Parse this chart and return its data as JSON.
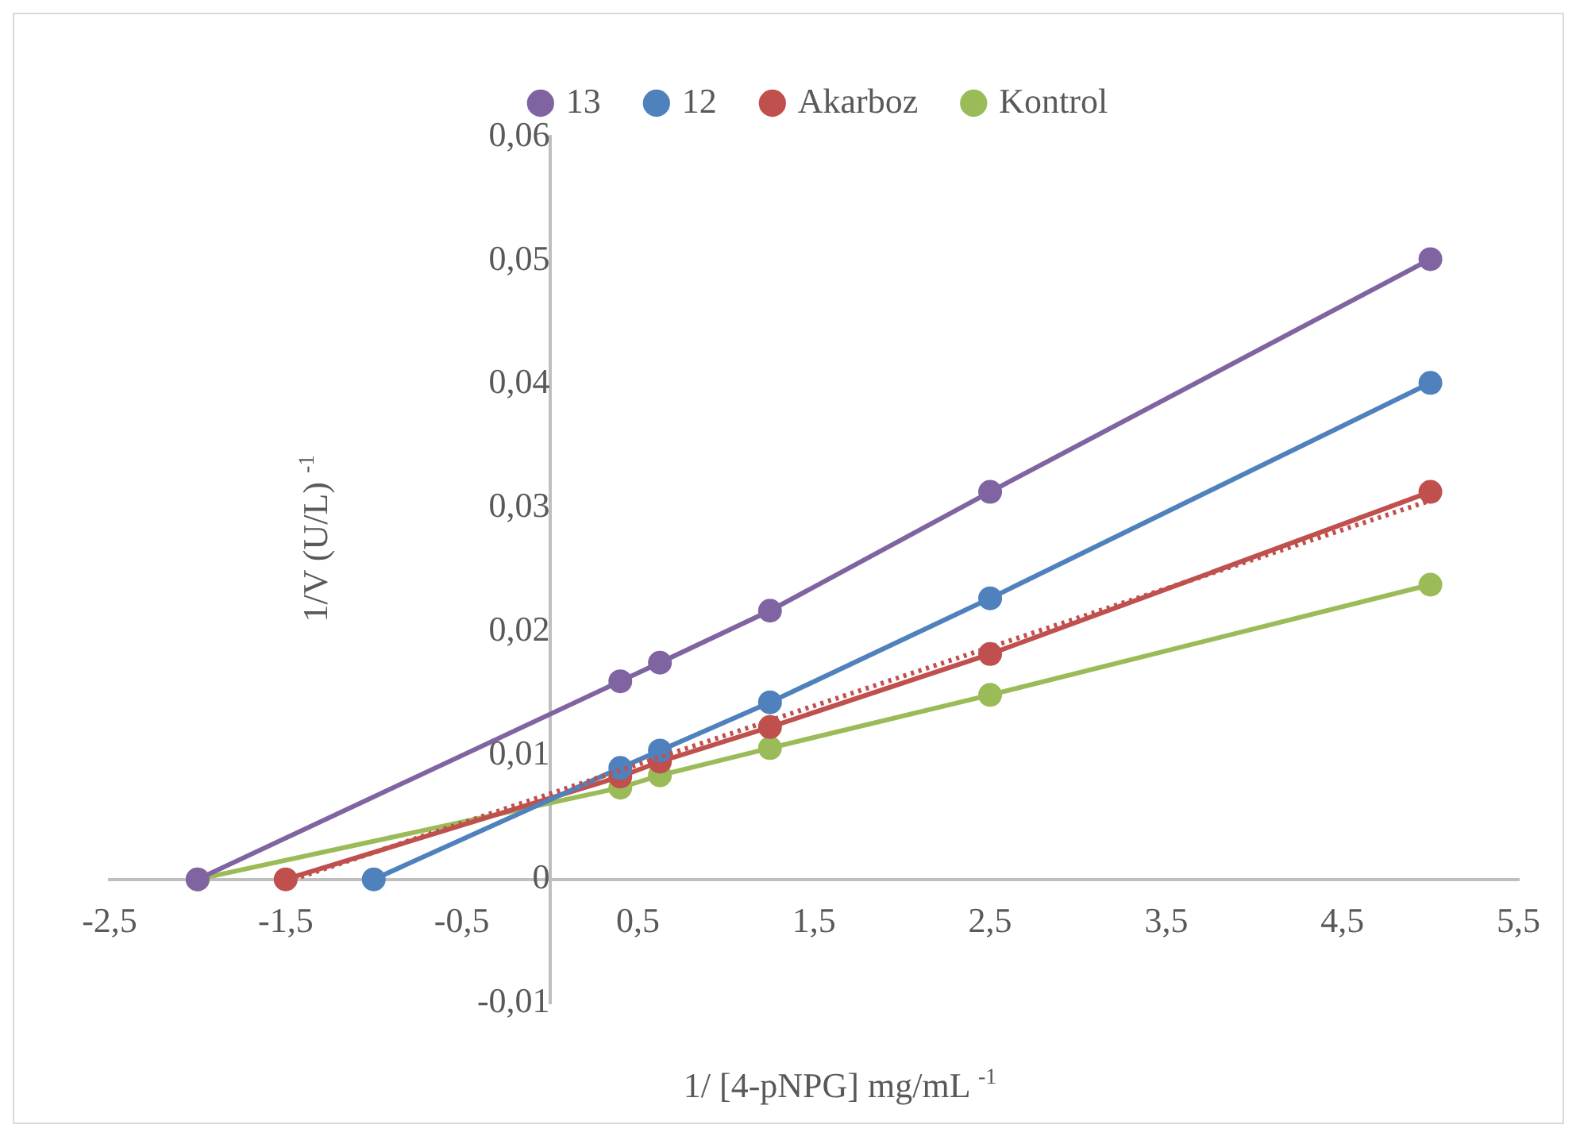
{
  "chart_data": {
    "type": "line",
    "xlabel": "1/ [4-pNPG] mg/mL $^{-1}$",
    "ylabel": "1/V (U/L) $^{-1}$",
    "xlim": [
      -2.5,
      5.5
    ],
    "xticks": [
      {
        "value": -2.5,
        "label": "-2,5"
      },
      {
        "value": -1.5,
        "label": "-1,5"
      },
      {
        "value": -0.5,
        "label": "-0,5"
      },
      {
        "value": 0.5,
        "label": "0,5"
      },
      {
        "value": 1.5,
        "label": "1,5"
      },
      {
        "value": 2.5,
        "label": "2,5"
      },
      {
        "value": 3.5,
        "label": "3,5"
      },
      {
        "value": 4.5,
        "label": "4,5"
      },
      {
        "value": 5.5,
        "label": "5,5"
      }
    ],
    "ylim": [
      -0.01,
      0.06
    ],
    "yticks": [
      {
        "value": -0.01,
        "label": "-0,01"
      },
      0,
      {
        "value": 0.01,
        "label": "0,01"
      },
      {
        "value": 0.02,
        "label": "0,02"
      },
      {
        "value": 0.03,
        "label": "0,03"
      },
      {
        "value": 0.04,
        "label": "0,04"
      },
      {
        "value": 0.05,
        "label": "0,05"
      },
      {
        "value": 0.06,
        "label": "0,06"
      }
    ],
    "grid": false,
    "legend": "top",
    "marker": "circle",
    "series": [
      {
        "name": "Kontrol",
        "color": "#9bbb59",
        "x": [
          -2,
          0.4,
          0.625,
          1.25,
          2.5,
          5
        ],
        "values": [
          0,
          0.0074,
          0.0084,
          0.0106,
          0.0149,
          0.0238
        ]
      },
      {
        "name": "Akarboz",
        "color": "#c0504d",
        "x": [
          -1.5,
          0.4,
          0.625,
          1.25,
          2.5,
          5
        ],
        "values": [
          0,
          0.0083,
          0.0095,
          0.0123,
          0.0182,
          0.0313
        ]
      },
      {
        "name": "12",
        "color": "#4f81bd",
        "x": [
          -1,
          0.4,
          0.625,
          1.25,
          2.5,
          5
        ],
        "values": [
          0,
          0.009,
          0.0104,
          0.0143,
          0.0227,
          0.0401
        ]
      },
      {
        "name": "13",
        "color": "#8064a2",
        "x": [
          -2,
          0.4,
          0.625,
          1.25,
          2.5,
          5
        ],
        "values": [
          0,
          0.016,
          0.0175,
          0.0217,
          0.0313,
          0.0501
        ]
      },
      {
        "type": "line",
        "color": "#c0504d",
        "line_style": "dotted",
        "marker": "none",
        "x": [
          -1.5,
          5
        ],
        "values": [
          -0.0002,
          0.0306
        ]
      }
    ]
  }
}
